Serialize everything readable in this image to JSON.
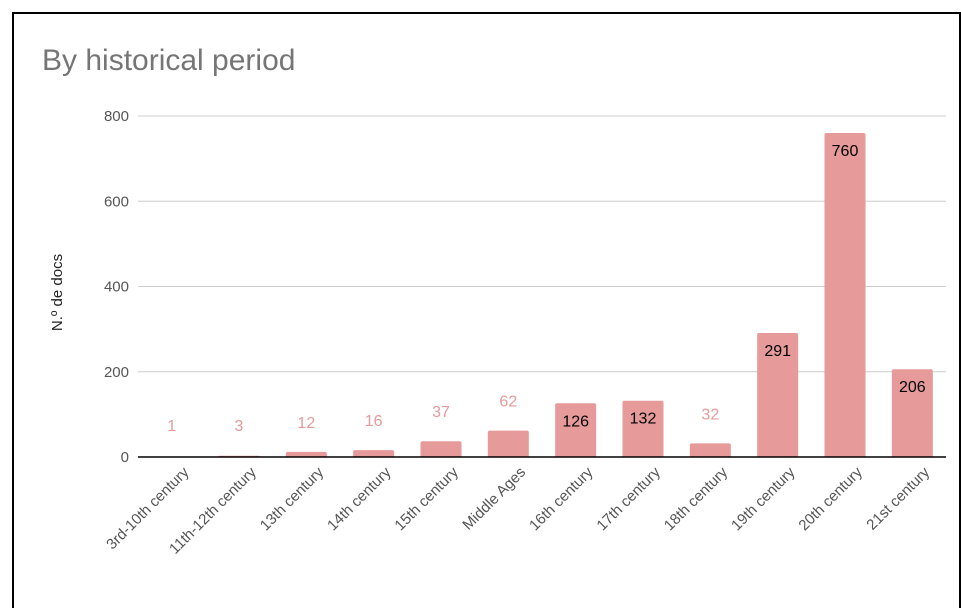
{
  "chart_data": {
    "type": "bar",
    "title": "By historical period",
    "xlabel": "",
    "ylabel": "N.º de docs",
    "ylim": [
      0,
      800
    ],
    "yticks": [
      0,
      200,
      400,
      600,
      800
    ],
    "categories": [
      "3rd-10th century",
      "11th-12th century",
      "13th century",
      "14th century",
      "15th century",
      "Middle Ages",
      "16th century",
      "17th century",
      "18th century",
      "19th century",
      "20th century",
      "21st century"
    ],
    "values": [
      1,
      3,
      12,
      16,
      37,
      62,
      126,
      132,
      32,
      291,
      760,
      206
    ],
    "data_labels": [
      "1",
      "3",
      "12",
      "16",
      "37",
      "62",
      "126",
      "132",
      "32",
      "291",
      "760",
      "206"
    ],
    "grid": true,
    "legend": "none",
    "colors": {
      "bar": "#e69a9a",
      "label_outside": "#e69a9a",
      "label_inside": "#000000",
      "grid": "#cccccc",
      "baseline": "#000000"
    }
  }
}
